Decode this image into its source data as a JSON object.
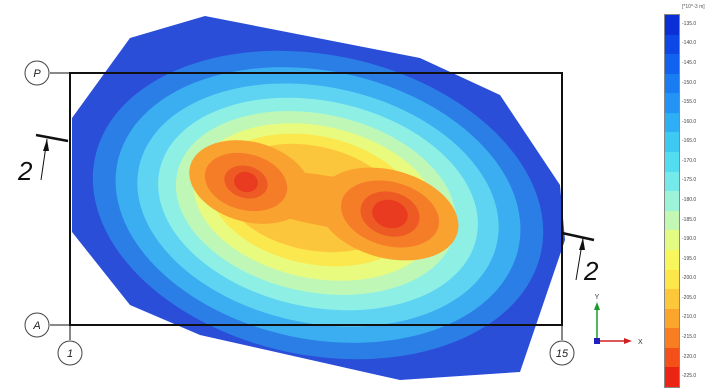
{
  "axis_markers": {
    "top_row": "P",
    "bottom_row": "A",
    "left_col": "1",
    "right_col": "15"
  },
  "section_marks": {
    "left": "2",
    "right": "2"
  },
  "axes_triad": {
    "y_label": "Y",
    "x_label": "X"
  },
  "legend": {
    "units": "[*10^-3 m]",
    "values": [
      "-135.0",
      "-140.0",
      "-145.0",
      "-150.0",
      "-155.0",
      "-160.0",
      "-165.0",
      "-170.0",
      "-175.0",
      "-180.0",
      "-185.0",
      "-190.0",
      "-195.0",
      "-200.0",
      "-205.0",
      "-210.0",
      "-215.0",
      "-220.0",
      "-225.0"
    ],
    "colors": [
      "#0a2fd6",
      "#0d48e6",
      "#1262f0",
      "#1a7cf3",
      "#2394f5",
      "#2eaef5",
      "#3ccaf2",
      "#52def0",
      "#74ebea",
      "#9cf3d8",
      "#c3f8b4",
      "#e3fb82",
      "#f7f65c",
      "#fde64a",
      "#fdc73a",
      "#fca52d",
      "#f97e22",
      "#f4511a",
      "#ec2414"
    ]
  },
  "contour_colors": [
    "#2a4ed8",
    "#2b7ee6",
    "#3aaef0",
    "#5fd4f2",
    "#8ef0e4",
    "#bff8b6",
    "#e8fb7e",
    "#fbe84e",
    "#fcc63c",
    "#f9a22f",
    "#f57d28",
    "#ee5a24",
    "#e83b1f"
  ]
}
